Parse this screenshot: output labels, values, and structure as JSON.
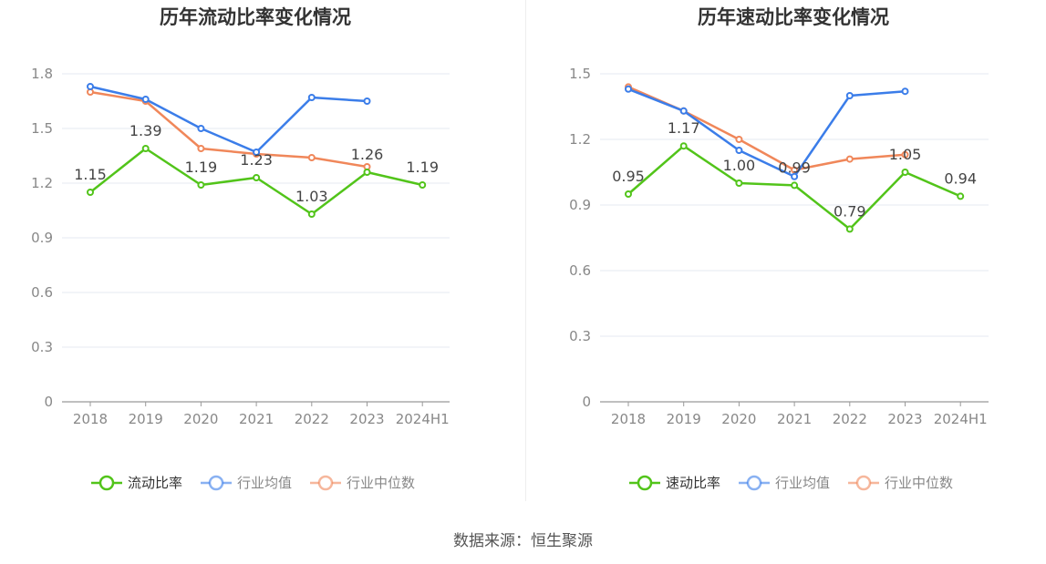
{
  "source_label": "数据来源：恒生聚源",
  "charts": [
    {
      "title": "历年流动比率变化情况",
      "ylim": [
        0,
        1.8
      ],
      "ytick_labels": [
        "0",
        "0.3",
        "0.6",
        "0.9",
        "1.2",
        "1.5",
        "1.8"
      ],
      "categories": [
        "2018",
        "2019",
        "2020",
        "2021",
        "2022",
        "2023",
        "2024H1"
      ],
      "series": [
        {
          "name": "流动比率",
          "color": "#52c41a",
          "values": [
            1.15,
            1.39,
            1.19,
            1.23,
            1.03,
            1.26,
            1.19
          ],
          "value_labels": [
            "1.15",
            "1.39",
            "1.19",
            "1.23",
            "1.03",
            "1.26",
            "1.19"
          ]
        },
        {
          "name": "行业均值",
          "color": "#3b7de9",
          "values": [
            1.73,
            1.66,
            1.5,
            1.37,
            1.67,
            1.65,
            null
          ]
        },
        {
          "name": "行业中位数",
          "color": "#f0875a",
          "values": [
            1.7,
            1.65,
            1.39,
            1.36,
            1.34,
            1.29,
            null
          ]
        }
      ]
    },
    {
      "title": "历年速动比率变化情况",
      "ylim": [
        0,
        1.5
      ],
      "ytick_labels": [
        "0",
        "0.3",
        "0.6",
        "0.9",
        "1.2",
        "1.5"
      ],
      "categories": [
        "2018",
        "2019",
        "2020",
        "2021",
        "2022",
        "2023",
        "2024H1"
      ],
      "series": [
        {
          "name": "速动比率",
          "color": "#52c41a",
          "values": [
            0.95,
            1.17,
            1.0,
            0.99,
            0.79,
            1.05,
            0.94
          ],
          "value_labels": [
            "0.95",
            "1.17",
            "1.00",
            "0.99",
            "0.79",
            "1.05",
            "0.94"
          ]
        },
        {
          "name": "行业均值",
          "color": "#3b7de9",
          "values": [
            1.43,
            1.33,
            1.15,
            1.03,
            1.4,
            1.42,
            null
          ]
        },
        {
          "name": "行业中位数",
          "color": "#f0875a",
          "values": [
            1.44,
            1.33,
            1.2,
            1.06,
            1.11,
            1.13,
            null
          ]
        }
      ]
    }
  ],
  "chart_data": [
    {
      "type": "line",
      "title": "历年流动比率变化情况",
      "categories": [
        "2018",
        "2019",
        "2020",
        "2021",
        "2022",
        "2023",
        "2024H1"
      ],
      "series": [
        {
          "name": "流动比率",
          "values": [
            1.15,
            1.39,
            1.19,
            1.23,
            1.03,
            1.26,
            1.19
          ]
        },
        {
          "name": "行业均值",
          "values": [
            1.73,
            1.66,
            1.5,
            1.37,
            1.67,
            1.65,
            null
          ]
        },
        {
          "name": "行业中位数",
          "values": [
            1.7,
            1.65,
            1.39,
            1.36,
            1.34,
            1.29,
            null
          ]
        }
      ],
      "ylim": [
        0,
        1.8
      ],
      "legend": "bottom-center",
      "grid": true
    },
    {
      "type": "line",
      "title": "历年速动比率变化情况",
      "categories": [
        "2018",
        "2019",
        "2020",
        "2021",
        "2022",
        "2023",
        "2024H1"
      ],
      "series": [
        {
          "name": "速动比率",
          "values": [
            0.95,
            1.17,
            1.0,
            0.99,
            0.79,
            1.05,
            0.94
          ]
        },
        {
          "name": "行业均值",
          "values": [
            1.43,
            1.33,
            1.15,
            1.03,
            1.4,
            1.42,
            null
          ]
        },
        {
          "name": "行业中位数",
          "values": [
            1.44,
            1.33,
            1.2,
            1.06,
            1.11,
            1.13,
            null
          ]
        }
      ],
      "ylim": [
        0,
        1.5
      ],
      "legend": "bottom-center",
      "grid": true
    }
  ]
}
